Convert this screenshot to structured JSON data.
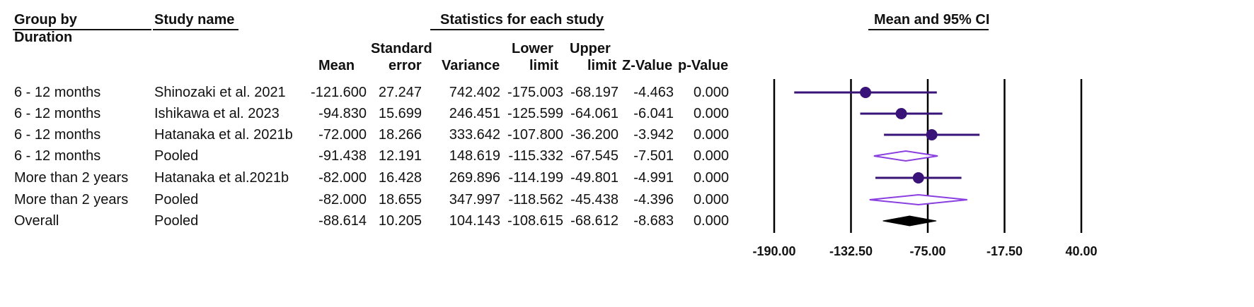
{
  "headers": {
    "group_by": "Group by",
    "duration": "Duration",
    "study_name": "Study name",
    "stats_title": "Statistics for each study",
    "plot_title": "Mean and 95% CI",
    "mean": "Mean",
    "se_line1": "Standard",
    "se_line2": "error",
    "variance": "Variance",
    "lower_line1": "Lower",
    "lower_line2": "limit",
    "upper_line1": "Upper",
    "upper_line2": "limit",
    "z": "Z-Value",
    "p": "p-Value"
  },
  "rows": [
    {
      "group": "6 - 12 months",
      "study": "Shinozaki et al. 2021",
      "mean": "-121.600",
      "se": "27.247",
      "variance": "742.402",
      "lower": "-175.003",
      "upper": "-68.197",
      "z": "-4.463",
      "p": "0.000"
    },
    {
      "group": "6 - 12 months",
      "study": "Ishikawa et al. 2023",
      "mean": "-94.830",
      "se": "15.699",
      "variance": "246.451",
      "lower": "-125.599",
      "upper": "-64.061",
      "z": "-6.041",
      "p": "0.000"
    },
    {
      "group": "6 - 12 months",
      "study": "Hatanaka et al. 2021b",
      "mean": "-72.000",
      "se": "18.266",
      "variance": "333.642",
      "lower": "-107.800",
      "upper": "-36.200",
      "z": "-3.942",
      "p": "0.000"
    },
    {
      "group": "6 - 12 months",
      "study": "Pooled",
      "mean": "-91.438",
      "se": "12.191",
      "variance": "148.619",
      "lower": "-115.332",
      "upper": "-67.545",
      "z": "-7.501",
      "p": "0.000"
    },
    {
      "group": "More than 2 years",
      "study": "Hatanaka et al.2021b",
      "mean": "-82.000",
      "se": "16.428",
      "variance": "269.896",
      "lower": "-114.199",
      "upper": "-49.801",
      "z": "-4.991",
      "p": "0.000"
    },
    {
      "group": "More than 2 years",
      "study": "Pooled",
      "mean": "-82.000",
      "se": "18.655",
      "variance": "347.997",
      "lower": "-118.562",
      "upper": "-45.438",
      "z": "-4.396",
      "p": "0.000"
    },
    {
      "group": "Overall",
      "study": "Pooled",
      "mean": "-88.614",
      "se": "10.205",
      "variance": "104.143",
      "lower": "-108.615",
      "upper": "-68.612",
      "z": "-8.683",
      "p": "0.000"
    }
  ],
  "chart_data": {
    "type": "forest",
    "title": "Mean and 95% CI",
    "xlim": [
      -190,
      40
    ],
    "xticks": [
      -190,
      -132.5,
      -75,
      -17.5,
      40
    ],
    "xtick_labels": [
      "-190.00",
      "-132.50",
      "-75.00",
      "-17.50",
      "40.00"
    ],
    "points": [
      {
        "kind": "study",
        "mean": -121.6,
        "lower": -175.003,
        "upper": -68.197
      },
      {
        "kind": "study",
        "mean": -94.83,
        "lower": -125.599,
        "upper": -64.061
      },
      {
        "kind": "study",
        "mean": -72.0,
        "lower": -107.8,
        "upper": -36.2
      },
      {
        "kind": "subtotal",
        "mean": -91.438,
        "lower": -115.332,
        "upper": -67.545
      },
      {
        "kind": "study",
        "mean": -82.0,
        "lower": -114.199,
        "upper": -49.801
      },
      {
        "kind": "subtotal",
        "mean": -82.0,
        "lower": -118.562,
        "upper": -45.438
      },
      {
        "kind": "overall",
        "mean": -88.614,
        "lower": -108.615,
        "upper": -68.612
      }
    ],
    "colors": {
      "study": "#3a1378",
      "subtotal": "#8a3fe0",
      "overall": "#000000"
    }
  }
}
